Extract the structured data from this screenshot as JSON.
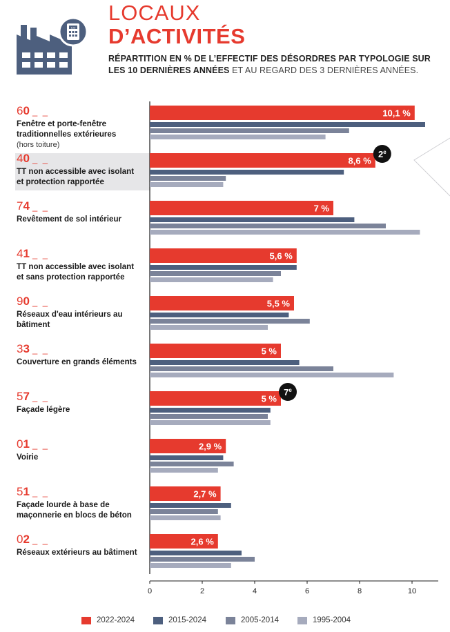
{
  "header": {
    "title_line1": "LOCAUX",
    "title_line2": "D’ACTIVITÉS",
    "subtitle_bold": "RÉPARTITION EN % DE L’EFFECTIF DES DÉSORDRES PAR TYPOLOGIE SUR LES 10 DERNIÈRES ANNÉES",
    "subtitle_light": " ET AU REGARD DES 3 DERNIÈRES ANNÉES.",
    "icon": "factory-calculator-icon",
    "icon_text": "123"
  },
  "colors": {
    "accent": "#e63a2e",
    "s2015": "#4d5f7e",
    "s2005": "#7b8399",
    "s1995": "#a6abbd",
    "factory": "#4d5f7e",
    "highlight_bg": "#e6e6e8"
  },
  "chart_data": {
    "type": "bar",
    "orientation": "horizontal",
    "xlim": [
      0,
      11
    ],
    "xticks": [
      "0",
      "2",
      "4",
      "6",
      "8",
      "10"
    ],
    "legend_position": "bottom",
    "series_names": [
      "2022-2024",
      "2015-2024",
      "2005-2014",
      "1995-2004"
    ],
    "categories": [
      {
        "code_prefix": "6",
        "code_bold": "0",
        "dashes": "_ _",
        "label": "Fenêtre et porte-fenêtre traditionnelles extérieures",
        "note": "(hors toiture)",
        "values": [
          10.1,
          10.5,
          7.6,
          6.7
        ],
        "value_label": "10,1 %",
        "rank": "",
        "highlight": false
      },
      {
        "code_prefix": "4",
        "code_bold": "0",
        "dashes": "_ _",
        "label": "TT non accessible avec isolant et protection rapportée",
        "note": "",
        "values": [
          8.6,
          7.4,
          2.9,
          2.8
        ],
        "value_label": "8,6 %",
        "rank": "2e",
        "highlight": true
      },
      {
        "code_prefix": "7",
        "code_bold": "4",
        "dashes": "_ _",
        "label": "Revêtement de sol intérieur",
        "note": "",
        "values": [
          7.0,
          7.8,
          9.0,
          10.3
        ],
        "value_label": "7 %",
        "rank": "",
        "highlight": false
      },
      {
        "code_prefix": "4",
        "code_bold": "1",
        "dashes": "_ _",
        "label": "TT non accessible avec isolant et sans protection rapportée",
        "note": "",
        "values": [
          5.6,
          5.6,
          5.0,
          4.7
        ],
        "value_label": "5,6 %",
        "rank": "",
        "highlight": false
      },
      {
        "code_prefix": "9",
        "code_bold": "0",
        "dashes": "_ _",
        "label": "Réseaux d'eau intérieurs au bâtiment",
        "note": "",
        "values": [
          5.5,
          5.3,
          6.1,
          4.5
        ],
        "value_label": "5,5 %",
        "rank": "",
        "highlight": false
      },
      {
        "code_prefix": "3",
        "code_bold": "3",
        "dashes": "_ _",
        "label": "Couverture en grands éléments",
        "note": "",
        "values": [
          5.0,
          5.7,
          7.0,
          9.3
        ],
        "value_label": "5 %",
        "rank": "",
        "highlight": false
      },
      {
        "code_prefix": "5",
        "code_bold": "7",
        "dashes": "_ _",
        "label": "Façade légère",
        "note": "",
        "values": [
          5.0,
          4.6,
          4.5,
          4.6
        ],
        "value_label": "5 %",
        "rank": "7e",
        "highlight": false
      },
      {
        "code_prefix": "0",
        "code_bold": "1",
        "dashes": "_ _",
        "label": "Voirie",
        "note": "",
        "values": [
          2.9,
          2.8,
          3.2,
          2.6
        ],
        "value_label": "2,9 %",
        "rank": "",
        "highlight": false
      },
      {
        "code_prefix": "5",
        "code_bold": "1",
        "dashes": "_ _",
        "label": "Façade lourde à base de maçonnerie en blocs de béton",
        "note": "",
        "values": [
          2.7,
          3.1,
          2.6,
          2.7
        ],
        "value_label": "2,7 %",
        "rank": "",
        "highlight": false
      },
      {
        "code_prefix": "0",
        "code_bold": "2",
        "dashes": "_ _",
        "label": "Réseaux extérieurs au bâtiment",
        "note": "",
        "values": [
          2.6,
          3.5,
          4.0,
          3.1
        ],
        "value_label": "2,6 %",
        "rank": "",
        "highlight": false
      }
    ]
  }
}
